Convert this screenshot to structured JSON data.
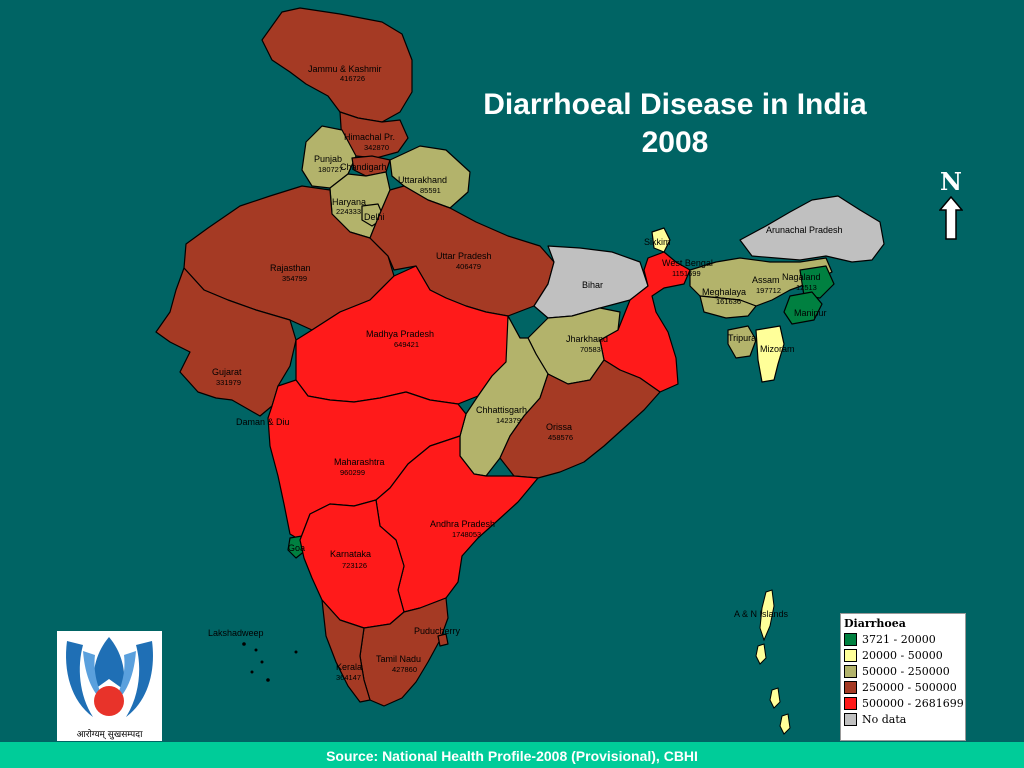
{
  "title": "Diarrhoeal Disease in India 2008",
  "north_label": "N",
  "source": "Source: National Health Profile-2008 (Provisional), CBHI",
  "logo": {
    "text": "आरोग्यम् सुखसम्पदा"
  },
  "legend": {
    "title": "Diarrhoea",
    "classes": [
      {
        "label": "3721 - 20000",
        "color": "#008040"
      },
      {
        "label": "20000 - 50000",
        "color": "#ffff99"
      },
      {
        "label": "50000 - 250000",
        "color": "#b3b36b"
      },
      {
        "label": "250000 - 500000",
        "color": "#a53a24"
      },
      {
        "label": "500000 - 2681699",
        "color": "#ff1a1a"
      },
      {
        "label": "No data",
        "color": "#c0c0c0"
      }
    ]
  },
  "states": {
    "jammu_kashmir": {
      "name": "Jammu & Kashmir",
      "value": "416726"
    },
    "himachal": {
      "name": "Himachal Pr.",
      "value": "342870"
    },
    "punjab": {
      "name": "Punjab",
      "value": "180727"
    },
    "chandigarh": {
      "name": "Chandigarh",
      "value": ""
    },
    "uttarakhand": {
      "name": "Uttarakhand",
      "value": "85591"
    },
    "haryana": {
      "name": "Haryana",
      "value": "224333"
    },
    "delhi": {
      "name": "Delhi",
      "value": ""
    },
    "rajasthan": {
      "name": "Rajasthan",
      "value": "354799"
    },
    "uttar_pradesh": {
      "name": "Uttar Pradesh",
      "value": "406479"
    },
    "bihar": {
      "name": "Bihar",
      "value": ""
    },
    "sikkim": {
      "name": "Sikkim",
      "value": ""
    },
    "west_bengal": {
      "name": "West Bengal",
      "value": "1151699"
    },
    "arunachal": {
      "name": "Arunachal Pradesh",
      "value": ""
    },
    "assam": {
      "name": "Assam",
      "value": "197712"
    },
    "nagaland": {
      "name": "Nagaland",
      "value": "12513"
    },
    "meghalaya": {
      "name": "Meghalaya",
      "value": "161636"
    },
    "manipur": {
      "name": "Manipur",
      "value": ""
    },
    "tripura": {
      "name": "Tripura",
      "value": ""
    },
    "mizoram": {
      "name": "Mizoram",
      "value": ""
    },
    "gujarat": {
      "name": "Gujarat",
      "value": "331979"
    },
    "madhya_pradesh": {
      "name": "Madhya Pradesh",
      "value": "649421"
    },
    "jharkhand": {
      "name": "Jharkhand",
      "value": "70583"
    },
    "chhattisgarh": {
      "name": "Chhattisgarh",
      "value": "142379"
    },
    "orissa": {
      "name": "Orissa",
      "value": "458576"
    },
    "daman_diu": {
      "name": "Daman & Diu",
      "value": ""
    },
    "maharashtra": {
      "name": "Maharashtra",
      "value": "960299"
    },
    "andhra_pradesh": {
      "name": "Andhra Pradesh",
      "value": "1748053"
    },
    "goa": {
      "name": "Goa",
      "value": ""
    },
    "karnataka": {
      "name": "Karnataka",
      "value": "723126"
    },
    "lakshadweep": {
      "name": "Lakshadweep",
      "value": ""
    },
    "puducherry": {
      "name": "Puducherry",
      "value": ""
    },
    "tamil_nadu": {
      "name": "Tamil Nadu",
      "value": "427860"
    },
    "kerala": {
      "name": "Kerala",
      "value": "364147"
    },
    "andaman": {
      "name": "A & N Islands",
      "value": ""
    }
  }
}
